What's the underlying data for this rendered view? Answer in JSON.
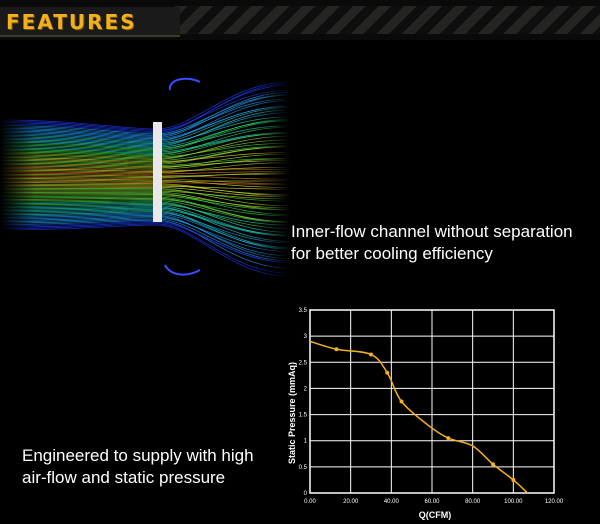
{
  "header": {
    "title": "FEATURES"
  },
  "captions": {
    "flow": [
      "Inner-flow channel without separation",
      "for better cooling efficiency"
    ],
    "pressure": [
      "Engineered to supply with high",
      "air-flow and static pressure"
    ]
  },
  "colors": {
    "accent": "#f2b01e",
    "curve": "#f2b01e",
    "grid": "#ffffff",
    "plot_bg": "#000000"
  },
  "chart_data": {
    "type": "line",
    "xlabel": "Q(CFM)",
    "ylabel": "Static Pressure (mmAq)",
    "xlim": [
      0,
      120
    ],
    "ylim": [
      0,
      3.5
    ],
    "xticks": [
      "0.00",
      "20.00",
      "40.00",
      "60.00",
      "80.00",
      "100.00",
      "120.00"
    ],
    "yticks": [
      "0",
      "0.5",
      "1",
      "1.5",
      "2",
      "2.5",
      "3",
      "3.5"
    ],
    "grid": true,
    "series": [
      {
        "values_x": [
          0,
          13,
          30,
          38,
          45,
          58,
          68,
          80,
          90,
          100,
          107
        ],
        "values_y": [
          2.9,
          2.75,
          2.65,
          2.3,
          1.75,
          1.3,
          1.05,
          0.9,
          0.55,
          0.25,
          0
        ],
        "markers_x": [
          13,
          30,
          38,
          45,
          68,
          90,
          100
        ],
        "markers_y": [
          2.75,
          2.65,
          2.3,
          1.75,
          1.05,
          0.55,
          0.25
        ]
      }
    ]
  }
}
